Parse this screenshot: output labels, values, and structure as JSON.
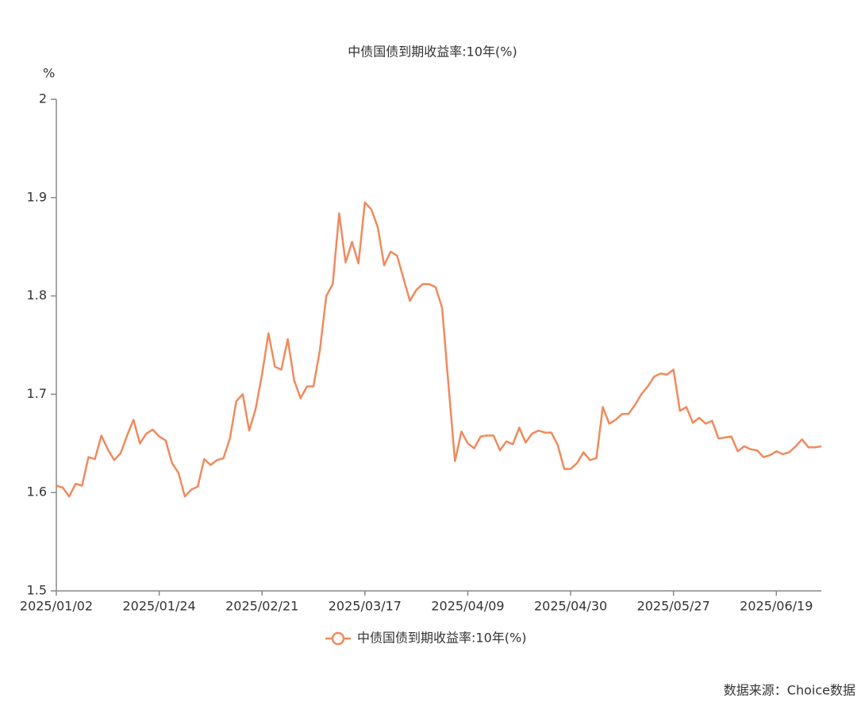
{
  "chart_data": {
    "type": "line",
    "title": "中债国债到期收益率:10年(%)",
    "y_unit": "%",
    "source": "数据来源：Choice数据",
    "categories": [
      "2025/01/02",
      null,
      null,
      null,
      null,
      null,
      null,
      null,
      null,
      null,
      null,
      null,
      null,
      null,
      null,
      null,
      "2025/01/24",
      null,
      null,
      null,
      null,
      null,
      null,
      null,
      null,
      null,
      null,
      null,
      null,
      null,
      null,
      null,
      "2025/02/21",
      null,
      null,
      null,
      null,
      null,
      null,
      null,
      null,
      null,
      null,
      null,
      null,
      null,
      null,
      null,
      "2025/03/17",
      null,
      null,
      null,
      null,
      null,
      null,
      null,
      null,
      null,
      null,
      null,
      null,
      null,
      null,
      null,
      "2025/04/09",
      null,
      null,
      null,
      null,
      null,
      null,
      null,
      null,
      null,
      null,
      null,
      null,
      null,
      null,
      null,
      "2025/04/30",
      null,
      null,
      null,
      null,
      null,
      null,
      null,
      null,
      null,
      null,
      null,
      null,
      null,
      null,
      null,
      "2025/05/27",
      null,
      null,
      null,
      null,
      null,
      null,
      null,
      null,
      null,
      null,
      null,
      null,
      null,
      null,
      null,
      "2025/06/19",
      null,
      null,
      null,
      null,
      null,
      null,
      null
    ],
    "series": [
      {
        "name": "中债国债到期收益率:10年(%)",
        "color": "#f08a5d",
        "values": [
          1.607,
          1.605,
          1.596,
          1.609,
          1.607,
          1.636,
          1.634,
          1.658,
          1.644,
          1.633,
          1.64,
          1.658,
          1.674,
          1.65,
          1.66,
          1.664,
          1.657,
          1.653,
          1.63,
          1.62,
          1.596,
          1.603,
          1.606,
          1.634,
          1.628,
          1.633,
          1.635,
          1.655,
          1.693,
          1.7,
          1.663,
          1.685,
          1.72,
          1.762,
          1.728,
          1.725,
          1.756,
          1.714,
          1.696,
          1.708,
          1.708,
          1.745,
          1.8,
          1.812,
          1.884,
          1.834,
          1.855,
          1.833,
          1.895,
          1.888,
          1.87,
          1.831,
          1.845,
          1.841,
          1.818,
          1.795,
          1.806,
          1.812,
          1.812,
          1.809,
          1.788,
          1.709,
          1.632,
          1.662,
          1.65,
          1.645,
          1.657,
          1.658,
          1.658,
          1.643,
          1.652,
          1.649,
          1.666,
          1.651,
          1.66,
          1.663,
          1.661,
          1.661,
          1.648,
          1.624,
          1.624,
          1.63,
          1.641,
          1.633,
          1.635,
          1.687,
          1.67,
          1.674,
          1.68,
          1.68,
          1.689,
          1.7,
          1.708,
          1.718,
          1.721,
          1.72,
          1.725,
          1.683,
          1.687,
          1.671,
          1.676,
          1.67,
          1.673,
          1.655,
          1.656,
          1.657,
          1.642,
          1.647,
          1.644,
          1.643,
          1.636,
          1.638,
          1.642,
          1.639,
          1.641,
          1.647,
          1.654,
          1.646,
          1.646,
          1.647
        ]
      }
    ],
    "ylim": [
      1.5,
      2
    ],
    "yticks": [
      1.5,
      1.6,
      1.7,
      1.8,
      1.9,
      2
    ],
    "grid": false,
    "legend": "bottom"
  }
}
